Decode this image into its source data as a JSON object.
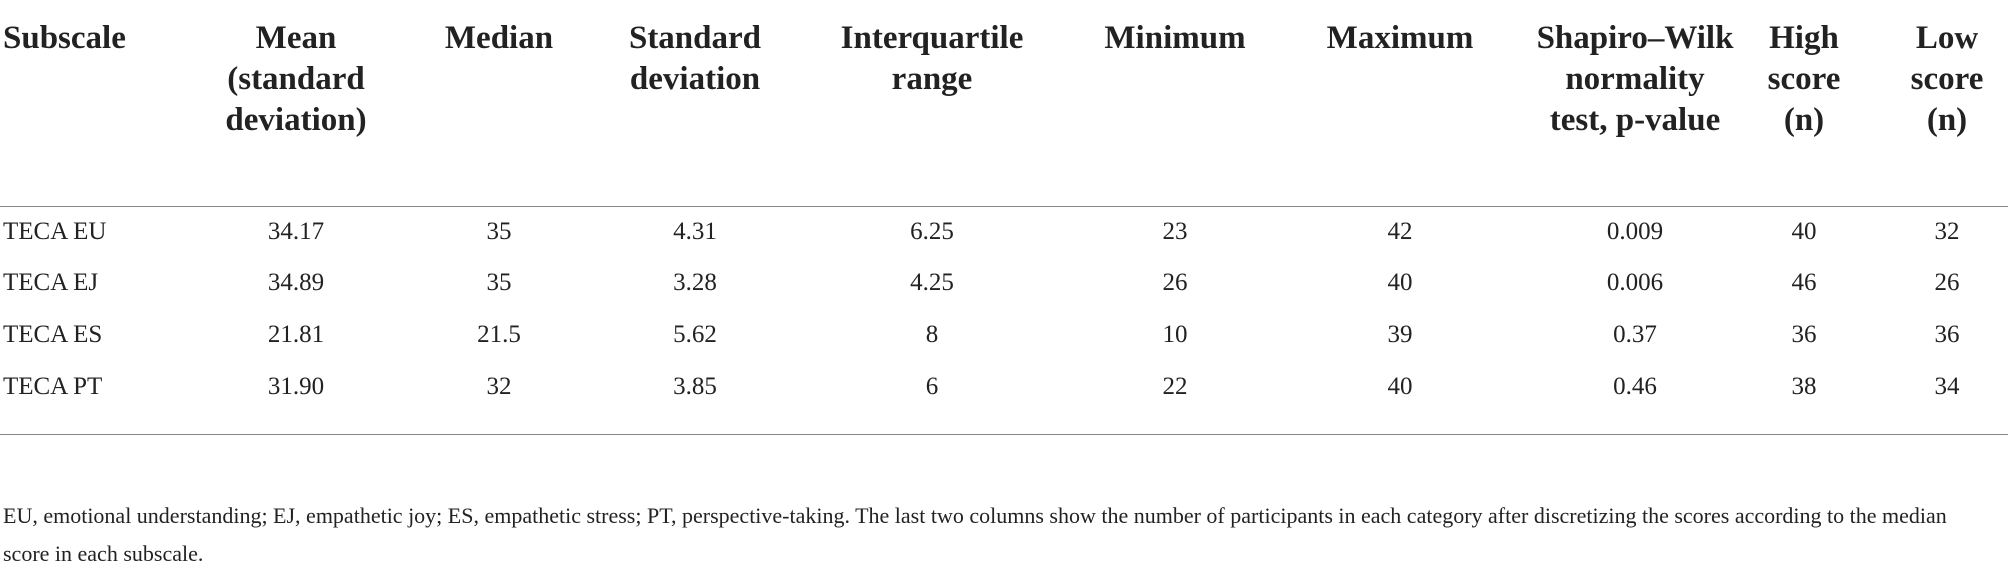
{
  "table": {
    "header": [
      "Subscale",
      "Mean (standard deviation)",
      "Median",
      "Standard deviation",
      "Interquartile range",
      "Minimum",
      "Maximum",
      "Shapiro–Wilk normality test, p-value",
      "High score (n)",
      "Low score (n)"
    ],
    "rows": [
      [
        "TECA EU",
        "34.17",
        "35",
        "4.31",
        "6.25",
        "23",
        "42",
        "0.009",
        "40",
        "32"
      ],
      [
        "TECA EJ",
        "34.89",
        "35",
        "3.28",
        "4.25",
        "26",
        "40",
        "0.006",
        "46",
        "26"
      ],
      [
        "TECA ES",
        "21.81",
        "21.5",
        "5.62",
        "8",
        "10",
        "39",
        "0.37",
        "36",
        "36"
      ],
      [
        "TECA PT",
        "31.90",
        "32",
        "3.85",
        "6",
        "22",
        "40",
        "0.46",
        "38",
        "34"
      ]
    ]
  },
  "footnote": "EU, emotional understanding; EJ, empathetic joy; ES, empathetic stress; PT, perspective-taking. The last two columns show the number of participants in each category after discretizing the scores according to the median score in each subscale."
}
